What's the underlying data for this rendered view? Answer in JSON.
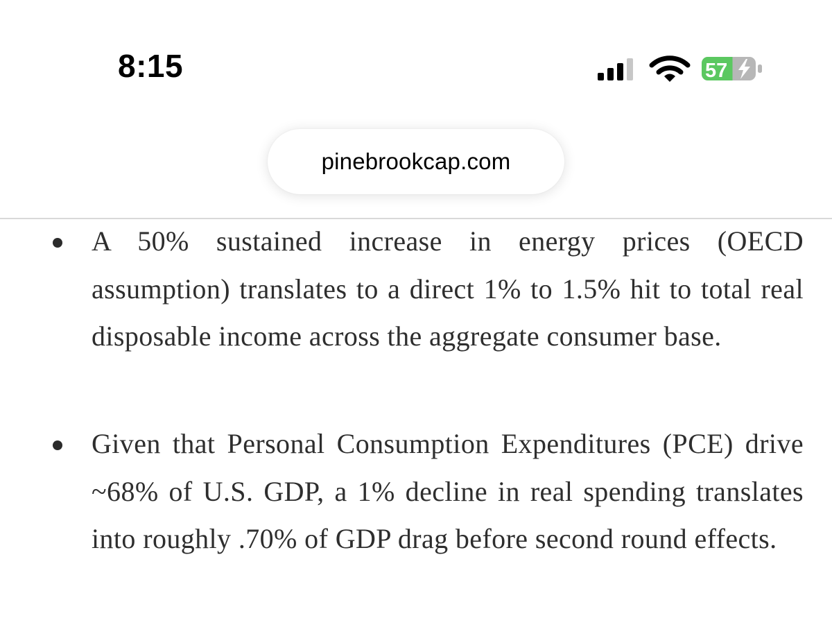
{
  "status_bar": {
    "time": "8:15",
    "battery_percent": "57",
    "battery_level": 0.57,
    "signal_icon": "cellular-signal-icon",
    "wifi_icon": "wifi-icon",
    "battery_icon": "battery-charging-icon",
    "battery_color": "#5bc860"
  },
  "browser": {
    "url": "pinebrookcap.com"
  },
  "article": {
    "bullets": [
      {
        "text": "A 50% sustained increase in energy prices (OECD assumption) translates to a direct 1% to 1.5% hit to total real disposable income across the aggregate consumer base."
      },
      {
        "text": "Given that Personal Consumption Expenditures (PCE) drive ~68% of U.S. GDP, a 1% decline in real spending translates into roughly .70% of GDP drag before second round effects."
      }
    ]
  }
}
